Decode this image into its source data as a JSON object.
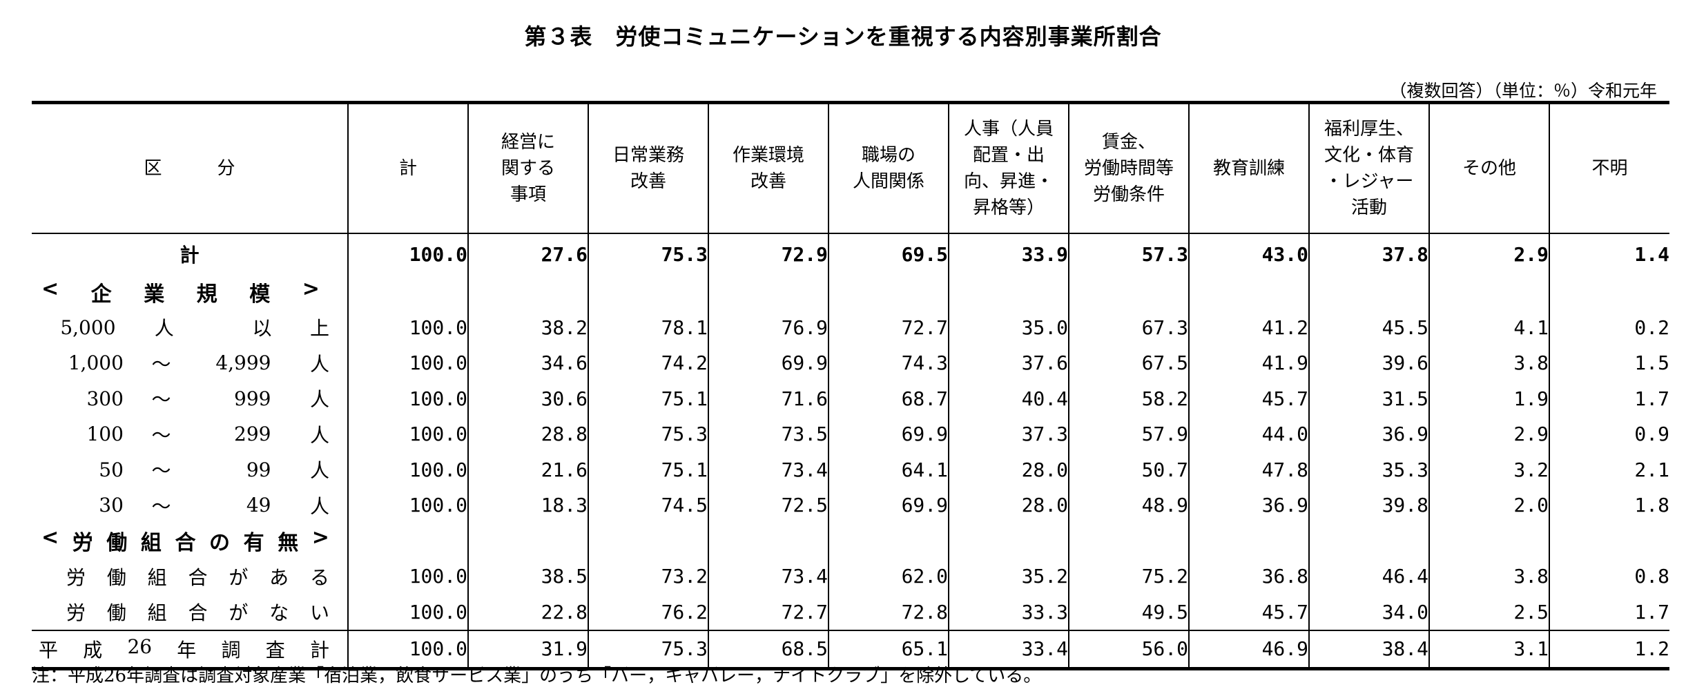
{
  "title": "第３表　労使コミュニケーションを重視する内容別事業所割合",
  "unit_note": "（複数回答）（単位：％）令和元年",
  "header": {
    "kubun": "区分",
    "columns": [
      [
        "計"
      ],
      [
        "経営に",
        "関する",
        "事項"
      ],
      [
        "日常業務",
        "改善"
      ],
      [
        "作業環境",
        "改善"
      ],
      [
        "職場の",
        "人間関係"
      ],
      [
        "人事（人員",
        "配置・出",
        "向、昇進・",
        "昇格等）"
      ],
      [
        "賃金、",
        "労働時間等",
        "労働条件"
      ],
      [
        "教育訓練"
      ],
      [
        "福利厚生、",
        "文化・体育",
        "・レジャー",
        "活動"
      ],
      [
        "その他"
      ],
      [
        "不明"
      ]
    ]
  },
  "rows": {
    "total": {
      "label": "計",
      "values": [
        "100.0",
        "27.6",
        "75.3",
        "72.9",
        "69.5",
        "33.9",
        "57.3",
        "43.0",
        "37.8",
        "2.9",
        "1.4"
      ]
    },
    "section_size": {
      "chars": [
        "<",
        "企",
        "業",
        "規",
        "模",
        ">"
      ]
    },
    "size_5000": {
      "a": "5,000",
      "b": "人",
      "c": "以",
      "d": "上",
      "values": [
        "100.0",
        "38.2",
        "78.1",
        "76.9",
        "72.7",
        "35.0",
        "67.3",
        "41.2",
        "45.5",
        "4.1",
        "0.2"
      ]
    },
    "size_1000": {
      "a": "1,000",
      "b": "～",
      "c": "4,999",
      "d": "人",
      "values": [
        "100.0",
        "34.6",
        "74.2",
        "69.9",
        "74.3",
        "37.6",
        "67.5",
        "41.9",
        "39.6",
        "3.8",
        "1.5"
      ]
    },
    "size_300": {
      "a": "300",
      "b": "～",
      "c": "999",
      "d": "人",
      "values": [
        "100.0",
        "30.6",
        "75.1",
        "71.6",
        "68.7",
        "40.4",
        "58.2",
        "45.7",
        "31.5",
        "1.9",
        "1.7"
      ]
    },
    "size_100": {
      "a": "100",
      "b": "～",
      "c": "299",
      "d": "人",
      "values": [
        "100.0",
        "28.8",
        "75.3",
        "73.5",
        "69.9",
        "37.3",
        "57.9",
        "44.0",
        "36.9",
        "2.9",
        "0.9"
      ]
    },
    "size_50": {
      "a": "50",
      "b": "～",
      "c": "99",
      "d": "人",
      "values": [
        "100.0",
        "21.6",
        "75.1",
        "73.4",
        "64.1",
        "28.0",
        "50.7",
        "47.8",
        "35.3",
        "3.2",
        "2.1"
      ]
    },
    "size_30": {
      "a": "30",
      "b": "～",
      "c": "49",
      "d": "人",
      "values": [
        "100.0",
        "18.3",
        "74.5",
        "72.5",
        "69.9",
        "28.0",
        "48.9",
        "36.9",
        "39.8",
        "2.0",
        "1.8"
      ]
    },
    "section_union": {
      "chars": [
        "<",
        "労",
        "働",
        "組",
        "合",
        "の",
        "有",
        "無",
        ">"
      ]
    },
    "union_yes": {
      "chars": [
        "労",
        "働",
        "組",
        "合",
        "が",
        "あ",
        "る"
      ],
      "values": [
        "100.0",
        "38.5",
        "73.2",
        "73.4",
        "62.0",
        "35.2",
        "75.2",
        "36.8",
        "46.4",
        "3.8",
        "0.8"
      ]
    },
    "union_no": {
      "chars": [
        "労",
        "働",
        "組",
        "合",
        "が",
        "な",
        "い"
      ],
      "values": [
        "100.0",
        "22.8",
        "76.2",
        "72.7",
        "72.8",
        "33.3",
        "49.5",
        "45.7",
        "34.0",
        "2.5",
        "1.7"
      ]
    },
    "h26": {
      "chars": [
        "平",
        "成",
        "26",
        "年",
        "調",
        "査",
        "計"
      ],
      "values": [
        "100.0",
        "31.9",
        "75.3",
        "68.5",
        "65.1",
        "33.4",
        "56.0",
        "46.9",
        "38.4",
        "3.1",
        "1.2"
      ]
    }
  },
  "footnote": "注：平成26年調査は調査対象産業「宿泊業，飲食サービス業」のうち「バー，キャバレー，ナイトクラブ」を除外している。"
}
